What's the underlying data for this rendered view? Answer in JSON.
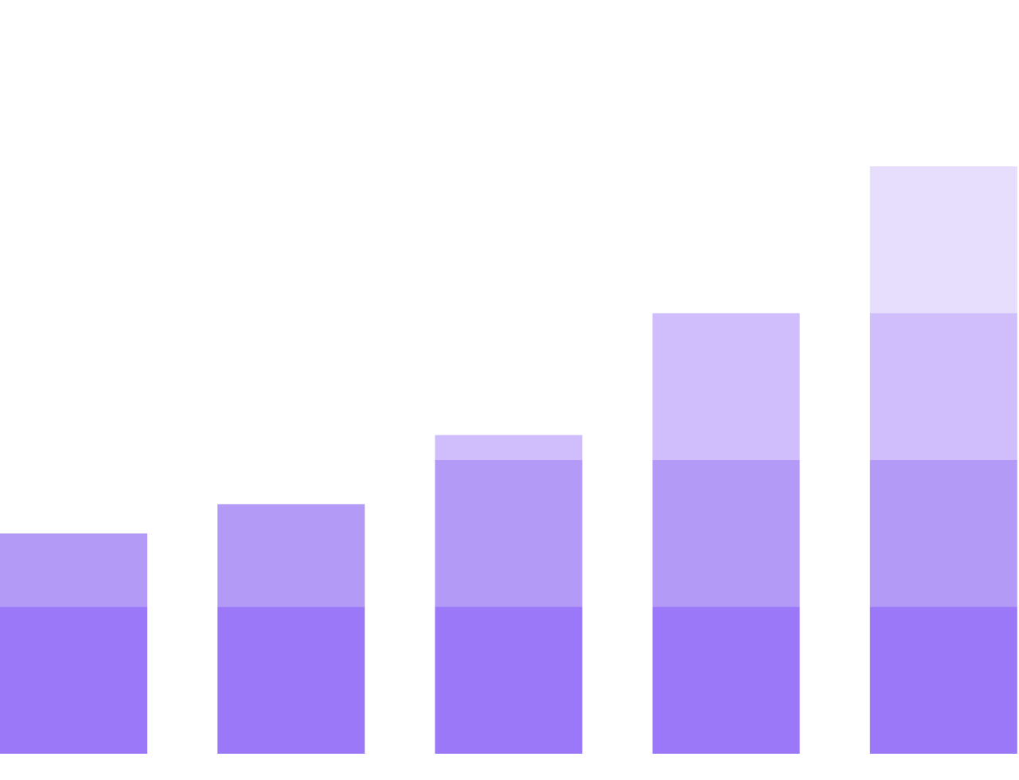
{
  "chart_data": {
    "type": "bar",
    "stacked": true,
    "title": "",
    "xlabel": "",
    "ylabel": "",
    "axes_visible": false,
    "grid": false,
    "legend": "none",
    "categories": [
      "",
      "",
      "",
      "",
      ""
    ],
    "ylim": [
      0,
      4
    ],
    "series": [
      {
        "color": "#9b78f7",
        "values": [
          1,
          1,
          1,
          1,
          1
        ]
      },
      {
        "color": "#b39af7",
        "values": [
          0.5,
          0.7,
          1,
          1,
          1
        ]
      },
      {
        "color": "#cfbefb",
        "values": [
          0,
          0,
          0.17,
          1,
          1
        ]
      },
      {
        "color": "#e6defc",
        "values": [
          0,
          0,
          0,
          0,
          1
        ]
      }
    ]
  }
}
